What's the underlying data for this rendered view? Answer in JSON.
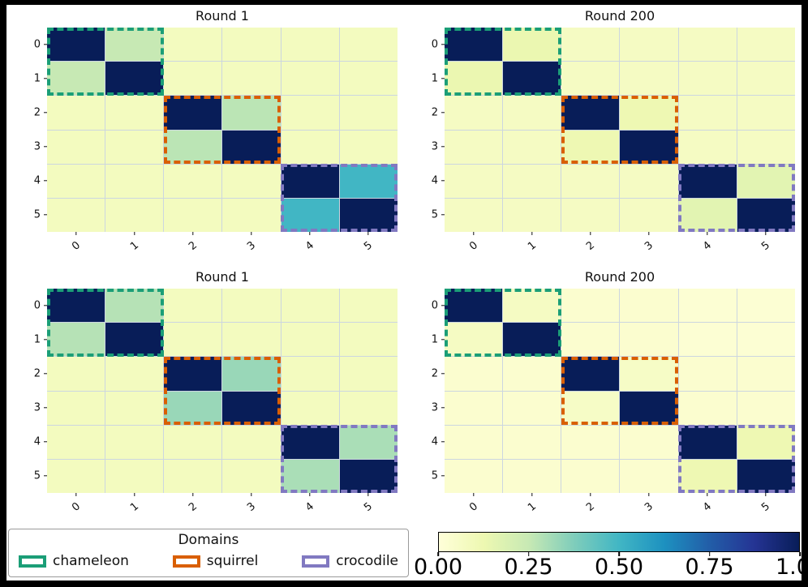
{
  "legend": {
    "title": "Domains",
    "items": [
      {
        "label": "chameleon",
        "color": "#1b9e77"
      },
      {
        "label": "squirrel",
        "color": "#d95f02"
      },
      {
        "label": "crocodile",
        "color": "#8179c1"
      }
    ]
  },
  "colorbar": {
    "ticks": [
      "0.00",
      "0.25",
      "0.50",
      "0.75",
      "1.00"
    ],
    "tick_positions": [
      0,
      25,
      50,
      75,
      100
    ]
  },
  "chart_data": {
    "type": "heatmap",
    "colormap": "YlGnBu",
    "value_range": [
      0,
      1
    ],
    "colormap_stops": [
      [
        0.0,
        "#ffffd9"
      ],
      [
        0.125,
        "#edf8b1"
      ],
      [
        0.25,
        "#c7e9b4"
      ],
      [
        0.375,
        "#7fcdbb"
      ],
      [
        0.5,
        "#41b6c4"
      ],
      [
        0.625,
        "#1d91c0"
      ],
      [
        0.75,
        "#225ea8"
      ],
      [
        0.875,
        "#253494"
      ],
      [
        1.0,
        "#081d58"
      ]
    ],
    "domain_boxes": [
      {
        "label": "chameleon",
        "rows": [
          0,
          1
        ],
        "cols": [
          0,
          1
        ],
        "color": "#1b9e77"
      },
      {
        "label": "squirrel",
        "rows": [
          2,
          3
        ],
        "cols": [
          2,
          3
        ],
        "color": "#d95f02"
      },
      {
        "label": "crocodile",
        "rows": [
          4,
          5
        ],
        "cols": [
          4,
          5
        ],
        "color": "#8179c1"
      }
    ],
    "subplots": [
      {
        "title": "Round 1",
        "x_ticks": [
          "0",
          "1",
          "2",
          "3",
          "4",
          "5"
        ],
        "y_ticks": [
          "0",
          "1",
          "2",
          "3",
          "4",
          "5"
        ],
        "matrix": [
          [
            1.0,
            0.25,
            0.08,
            0.08,
            0.08,
            0.08
          ],
          [
            0.25,
            1.0,
            0.08,
            0.08,
            0.08,
            0.08
          ],
          [
            0.08,
            0.08,
            1.0,
            0.27,
            0.08,
            0.08
          ],
          [
            0.08,
            0.08,
            0.27,
            1.0,
            0.08,
            0.08
          ],
          [
            0.08,
            0.08,
            0.08,
            0.08,
            1.0,
            0.5
          ],
          [
            0.08,
            0.08,
            0.08,
            0.08,
            0.5,
            1.0
          ]
        ]
      },
      {
        "title": "Round 200",
        "x_ticks": [
          "0",
          "1",
          "2",
          "3",
          "4",
          "5"
        ],
        "y_ticks": [
          "0",
          "1",
          "2",
          "3",
          "4",
          "5"
        ],
        "matrix": [
          [
            1.0,
            0.13,
            0.07,
            0.07,
            0.07,
            0.07
          ],
          [
            0.13,
            1.0,
            0.07,
            0.07,
            0.07,
            0.07
          ],
          [
            0.07,
            0.07,
            1.0,
            0.12,
            0.07,
            0.07
          ],
          [
            0.07,
            0.07,
            0.12,
            1.0,
            0.07,
            0.07
          ],
          [
            0.07,
            0.07,
            0.07,
            0.07,
            1.0,
            0.16
          ],
          [
            0.07,
            0.07,
            0.07,
            0.07,
            0.16,
            1.0
          ]
        ]
      },
      {
        "title": "Round 1",
        "x_ticks": [
          "0",
          "1",
          "2",
          "3",
          "4",
          "5"
        ],
        "y_ticks": [
          "0",
          "1",
          "2",
          "3",
          "4",
          "5"
        ],
        "matrix": [
          [
            1.0,
            0.28,
            0.08,
            0.08,
            0.08,
            0.08
          ],
          [
            0.28,
            1.0,
            0.08,
            0.08,
            0.08,
            0.08
          ],
          [
            0.08,
            0.08,
            1.0,
            0.33,
            0.08,
            0.08
          ],
          [
            0.08,
            0.08,
            0.33,
            1.0,
            0.08,
            0.08
          ],
          [
            0.08,
            0.08,
            0.08,
            0.08,
            1.0,
            0.3
          ],
          [
            0.08,
            0.08,
            0.08,
            0.08,
            0.3,
            1.0
          ]
        ]
      },
      {
        "title": "Round 200",
        "x_ticks": [
          "0",
          "1",
          "2",
          "3",
          "4",
          "5"
        ],
        "y_ticks": [
          "0",
          "1",
          "2",
          "3",
          "4",
          "5"
        ],
        "matrix": [
          [
            1.0,
            0.07,
            0.03,
            0.03,
            0.02,
            0.02
          ],
          [
            0.07,
            1.0,
            0.03,
            0.03,
            0.02,
            0.02
          ],
          [
            0.03,
            0.03,
            1.0,
            0.06,
            0.03,
            0.03
          ],
          [
            0.03,
            0.03,
            0.06,
            1.0,
            0.03,
            0.03
          ],
          [
            0.03,
            0.03,
            0.03,
            0.03,
            1.0,
            0.12
          ],
          [
            0.03,
            0.03,
            0.03,
            0.03,
            0.12,
            1.0
          ]
        ]
      }
    ]
  }
}
